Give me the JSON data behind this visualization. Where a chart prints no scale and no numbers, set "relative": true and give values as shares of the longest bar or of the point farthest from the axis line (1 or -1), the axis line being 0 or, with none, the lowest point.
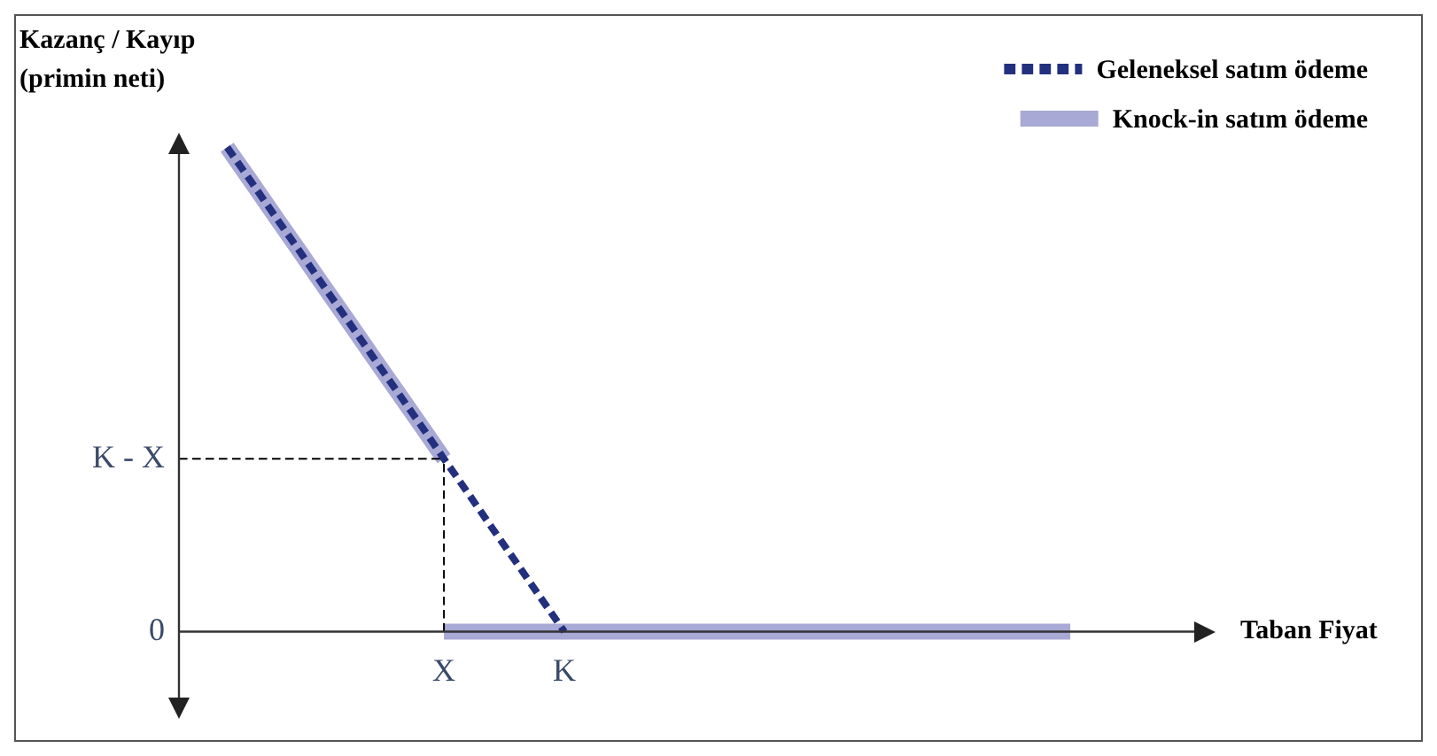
{
  "chart_data": {
    "type": "line",
    "relative": true,
    "xlabel": "Taban Fiyat",
    "ylabel": "Kazanç / Kayıp\n(primin neti)",
    "categories": [
      null,
      null,
      null,
      null,
      null,
      null,
      null,
      null,
      null,
      null,
      null,
      "X",
      null,
      null,
      null,
      null,
      "K",
      null,
      null,
      null,
      null,
      null,
      null,
      null,
      null,
      null,
      null,
      null,
      null,
      null,
      null,
      null,
      null,
      null,
      null,
      null,
      null,
      null,
      null,
      null,
      null,
      null,
      null
    ],
    "grid": false,
    "legend": "top right",
    "marker": "none",
    "series": [
      {
        "name": "Geleneksel satım ödeme",
        "color": "#23307e",
        "line_style": "dashed",
        "values": [
          null,
          null,
          1,
          0.929,
          0.857,
          0.786,
          0.714,
          0.643,
          0.571,
          0.5,
          0.429,
          0.357,
          0.286,
          0.214,
          0.143,
          0.071,
          0,
          null,
          null,
          null,
          null,
          null,
          null,
          null,
          null,
          null,
          null,
          null,
          null,
          null,
          null,
          null,
          null,
          null,
          null,
          null,
          null,
          null,
          null,
          null,
          null,
          null,
          null
        ]
      },
      {
        "name": "Knock-in satım ödeme",
        "color": "#a9a9d6",
        "line_style": "solid",
        "values": [
          null,
          null,
          1,
          0.929,
          0.857,
          0.786,
          0.714,
          0.643,
          0.571,
          0.5,
          0.429,
          0.357,
          null,
          null,
          null,
          null,
          null,
          null,
          null,
          null,
          null,
          null,
          null,
          null,
          null,
          null,
          null,
          null,
          null,
          null,
          null,
          null,
          null,
          null,
          null,
          null,
          null,
          null,
          null,
          null,
          null,
          null,
          null
        ]
      },
      {
        "color": "#a9a9d6",
        "line_style": "solid",
        "values": [
          null,
          null,
          null,
          null,
          null,
          null,
          null,
          null,
          null,
          null,
          null,
          0,
          0,
          0,
          0,
          0,
          0,
          0,
          0,
          0,
          0,
          0,
          0,
          0,
          0,
          0,
          0,
          0,
          0,
          0,
          0,
          0,
          0,
          0,
          0,
          0,
          0,
          0,
          null,
          null,
          null,
          null,
          null
        ]
      }
    ],
    "annotations": [
      "0"
    ],
    "ref_lines": [
      {
        "axis": "y",
        "value": 0.357,
        "label": "K - X",
        "color": "#000000",
        "line_style": "dashed"
      },
      {
        "axis": "x",
        "value": "X",
        "color": "#000000",
        "line_style": "dashed"
      }
    ]
  }
}
